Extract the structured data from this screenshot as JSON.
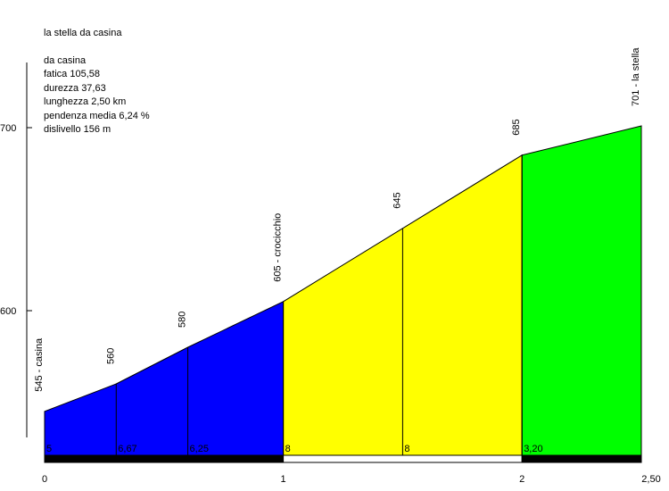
{
  "title": "la stella da casina",
  "stats": {
    "start": "da casina",
    "fatica": "fatica 105,58",
    "durezza": "durezza 37,63",
    "lunghezza": "lunghezza 2,50 km",
    "pendenza": "pendenza media 6,24 %",
    "dislivello": "dislivello 156 m"
  },
  "chart_data": {
    "type": "area",
    "title": "la stella da casina",
    "xlabel": "",
    "ylabel": "",
    "xlim": [
      0,
      2.5
    ],
    "ylim": [
      530,
      730
    ],
    "grid": false,
    "y_ticks": [
      {
        "value": 600,
        "label": "600"
      },
      {
        "value": 700,
        "label": "700"
      }
    ],
    "x_ticks": [
      {
        "value": 0,
        "label": "0"
      },
      {
        "value": 1,
        "label": "1"
      },
      {
        "value": 2,
        "label": "2"
      },
      {
        "value": 2.5,
        "label": "2,50"
      }
    ],
    "points": [
      {
        "x": 0,
        "y": 545,
        "label": "545 - casina"
      },
      {
        "x": 0.3,
        "y": 560,
        "label": "560"
      },
      {
        "x": 0.6,
        "y": 580,
        "label": "580"
      },
      {
        "x": 1.0,
        "y": 605,
        "label": "605 - crocicchio"
      },
      {
        "x": 1.5,
        "y": 645,
        "label": "645"
      },
      {
        "x": 2.0,
        "y": 685,
        "label": "685"
      },
      {
        "x": 2.5,
        "y": 701,
        "label": "701 - la stella"
      }
    ],
    "segments": [
      {
        "from": 0,
        "to": 0.3,
        "gradient": "5"
      },
      {
        "from": 0.3,
        "to": 0.6,
        "gradient": "6,67"
      },
      {
        "from": 0.6,
        "to": 1.0,
        "gradient": "6,25"
      },
      {
        "from": 1.0,
        "to": 1.5,
        "gradient": "8"
      },
      {
        "from": 1.5,
        "to": 2.0,
        "gradient": "8"
      },
      {
        "from": 2.0,
        "to": 2.5,
        "gradient": "3,20"
      }
    ],
    "km_fills": [
      {
        "from": 0,
        "to": 1,
        "color": "#0000ff"
      },
      {
        "from": 1,
        "to": 2,
        "color": "#ffff00"
      },
      {
        "from": 2,
        "to": 2.5,
        "color": "#00ff00"
      }
    ],
    "km_bar": [
      {
        "from": 0,
        "to": 1,
        "color": "#000000"
      },
      {
        "from": 1,
        "to": 2,
        "color": "#ffffff"
      },
      {
        "from": 2,
        "to": 2.5,
        "color": "#000000"
      }
    ]
  }
}
